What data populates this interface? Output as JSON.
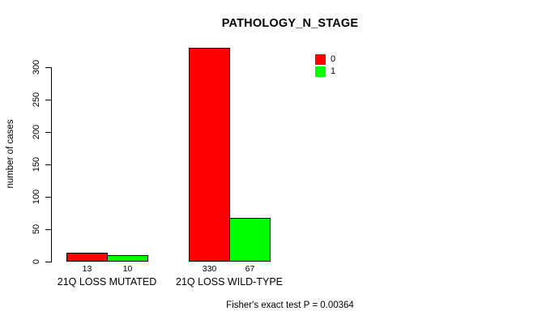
{
  "chart_data": {
    "type": "bar",
    "title": "PATHOLOGY_N_STAGE",
    "ylabel": "number of cases",
    "xlabel": "",
    "categories": [
      "21Q LOSS MUTATED",
      "21Q LOSS WILD-TYPE"
    ],
    "series": [
      {
        "name": "0",
        "color": "#FF0000",
        "values": [
          13,
          330
        ]
      },
      {
        "name": "1",
        "color": "#00FF00",
        "values": [
          10,
          67
        ]
      }
    ],
    "yticks": [
      0,
      50,
      100,
      150,
      200,
      250,
      300
    ],
    "ylim": [
      0,
      300
    ],
    "grid": false,
    "legend_position": "top-right-inside",
    "bar_value_labels": true,
    "footer": "Fisher's exact test P = 0.00364"
  }
}
